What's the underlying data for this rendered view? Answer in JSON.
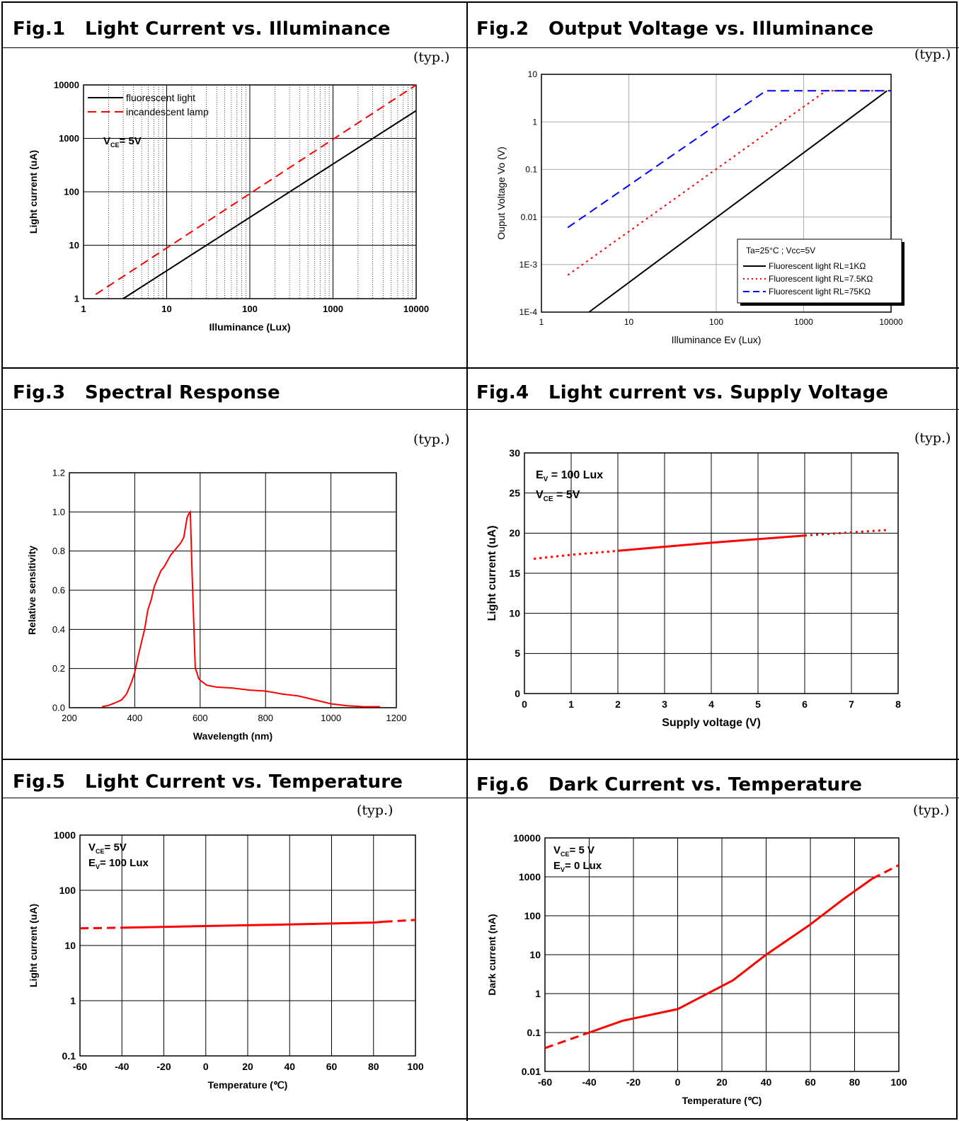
{
  "typ_label": "(typ.)",
  "charts": [
    {
      "title": "Fig.1   Light Current vs. Illuminance"
    },
    {
      "title": "Fig.2   Output Voltage vs. Illuminance"
    },
    {
      "title": "Fig.3   Spectral Response"
    },
    {
      "title": "Fig.4   Light current vs. Supply Voltage"
    },
    {
      "title": "Fig.5   Light Current vs. Temperature"
    },
    {
      "title": "Fig.6   Dark Current vs. Temperature"
    }
  ],
  "chart_data": [
    {
      "type": "line",
      "title": "Fig.1   Light Current vs. Illuminance",
      "xlabel": "Illuminance (Lux)",
      "ylabel": "Light current (uA)",
      "x_scale": "log",
      "y_scale": "log",
      "xlim": [
        1,
        10000
      ],
      "ylim": [
        1,
        10000
      ],
      "x_ticks": [
        "1",
        "10",
        "100",
        "1000",
        "10000"
      ],
      "y_ticks": [
        "1",
        "10",
        "100",
        "1000",
        "10000"
      ],
      "grid": true,
      "legend_position": "top-left",
      "annotation": {
        "main": "V",
        "sub": "CE",
        "rest": "= 5V"
      },
      "series": [
        {
          "name": "fluorescent light",
          "color": "#000000",
          "style": "solid",
          "x": [
            3,
            10000
          ],
          "y": [
            1,
            3300
          ]
        },
        {
          "name": "incandescent lamp",
          "color": "#ff0000",
          "style": "dashed",
          "x": [
            1.4,
            10000
          ],
          "y": [
            1.2,
            10000
          ]
        }
      ]
    },
    {
      "type": "line",
      "title": "Fig.2   Output Voltage vs. Illuminance",
      "xlabel": "Illuminance Ev (Lux)",
      "ylabel": "Ouput Voltage Vo (V)",
      "x_scale": "log",
      "y_scale": "log",
      "xlim": [
        1,
        10000
      ],
      "ylim": [
        0.0001,
        10
      ],
      "x_ticks": [
        "1",
        "10",
        "100",
        "1000",
        "10000"
      ],
      "y_ticks": [
        "1E-4",
        "1E-3",
        "0.01",
        "0.1",
        "1",
        "10"
      ],
      "grid": true,
      "legend_position": "bottom-right",
      "legend_title": "Ta=25°C ; Vcc=5V",
      "series": [
        {
          "name": "Fluorescent light  RL=1KΩ",
          "color": "#000000",
          "style": "solid",
          "x": [
            3.5,
            9000
          ],
          "y": [
            0.0001,
            4.5
          ]
        },
        {
          "name": "Fluorescent light  RL=7.5KΩ",
          "color": "#ff0000",
          "style": "dotted",
          "x": [
            2,
            1800,
            10000
          ],
          "y": [
            0.0006,
            4.5,
            4.5
          ]
        },
        {
          "name": "Fluorescent light  RL=75KΩ",
          "color": "#0000ff",
          "style": "dashed",
          "x": [
            2,
            370,
            10000
          ],
          "y": [
            0.006,
            4.5,
            4.5
          ]
        }
      ]
    },
    {
      "type": "line",
      "title": "Fig.3   Spectral Response",
      "xlabel": "Wavelength (nm)",
      "ylabel": "Relative sensitivity",
      "xlim": [
        200,
        1200
      ],
      "ylim": [
        0,
        1.2
      ],
      "x_ticks": [
        "200",
        "400",
        "600",
        "800",
        "1000",
        "1200"
      ],
      "y_ticks": [
        "0.0",
        "0.2",
        "0.4",
        "0.6",
        "0.8",
        "1.0",
        "1.2"
      ],
      "grid": true,
      "series": [
        {
          "name": "",
          "color": "#ff0000",
          "style": "solid",
          "x": [
            300,
            320,
            340,
            360,
            375,
            390,
            400,
            410,
            420,
            430,
            440,
            450,
            460,
            470,
            480,
            490,
            500,
            510,
            520,
            530,
            540,
            550,
            560,
            565,
            570,
            575,
            580,
            585,
            590,
            595,
            600,
            620,
            650,
            700,
            750,
            800,
            850,
            900,
            950,
            1000,
            1050,
            1100,
            1150
          ],
          "y": [
            0.005,
            0.012,
            0.025,
            0.04,
            0.07,
            0.13,
            0.18,
            0.26,
            0.33,
            0.4,
            0.5,
            0.55,
            0.62,
            0.66,
            0.7,
            0.72,
            0.75,
            0.78,
            0.8,
            0.82,
            0.84,
            0.87,
            0.97,
            0.99,
            1.0,
            0.7,
            0.45,
            0.2,
            0.18,
            0.15,
            0.14,
            0.115,
            0.105,
            0.1,
            0.09,
            0.085,
            0.07,
            0.06,
            0.04,
            0.02,
            0.01,
            0.005,
            0.005
          ]
        }
      ]
    },
    {
      "type": "line",
      "title": "Fig.4   Light current vs. Supply Voltage",
      "xlabel": "Supply voltage (V)",
      "ylabel": "Light current (uA)",
      "xlim": [
        0,
        8
      ],
      "ylim": [
        0,
        30
      ],
      "x_ticks": [
        "0",
        "1",
        "2",
        "3",
        "4",
        "5",
        "6",
        "7",
        "8"
      ],
      "y_ticks": [
        "0",
        "5",
        "10",
        "15",
        "20",
        "25",
        "30"
      ],
      "grid": true,
      "annotations": [
        {
          "main": "E",
          "sub": "V",
          "rest": " = 100 Lux"
        },
        {
          "main": "V",
          "sub": "CE",
          "rest": " = 5V"
        }
      ],
      "series": [
        {
          "name": "",
          "color": "#ff0000",
          "style": "dotted",
          "x": [
            0.2,
            1,
            2
          ],
          "y": [
            16.8,
            17.3,
            17.8
          ]
        },
        {
          "name": "",
          "color": "#ff0000",
          "style": "solid",
          "x": [
            2,
            4,
            6
          ],
          "y": [
            17.8,
            18.8,
            19.7
          ]
        },
        {
          "name": "",
          "color": "#ff0000",
          "style": "dotted",
          "x": [
            6,
            7,
            7.8
          ],
          "y": [
            19.7,
            20.1,
            20.4
          ]
        }
      ]
    },
    {
      "type": "line",
      "title": "Fig.5   Light Current vs. Temperature",
      "xlabel": "Temperature (℃)",
      "ylabel": "Light current (uA)",
      "y_scale": "log",
      "xlim": [
        -60,
        100
      ],
      "ylim": [
        0.1,
        1000
      ],
      "x_ticks": [
        "-60",
        "-40",
        "-20",
        "0",
        "20",
        "40",
        "60",
        "80",
        "100"
      ],
      "y_ticks": [
        "0.1",
        "1",
        "10",
        "100",
        "1000"
      ],
      "grid": true,
      "annotations": [
        {
          "main": "V",
          "sub": "CE",
          "rest": "= 5V"
        },
        {
          "main": "E",
          "sub": "V",
          "rest": "= 100 Lux"
        }
      ],
      "series": [
        {
          "name": "",
          "color": "#ff0000",
          "style": "dashed",
          "x": [
            -60,
            -40
          ],
          "y": [
            20.5,
            21
          ]
        },
        {
          "name": "",
          "color": "#ff0000",
          "style": "solid",
          "x": [
            -40,
            0,
            40,
            80,
            85
          ],
          "y": [
            21,
            22.5,
            24,
            26,
            27
          ]
        },
        {
          "name": "",
          "color": "#ff0000",
          "style": "dashed",
          "x": [
            85,
            100
          ],
          "y": [
            27,
            29
          ]
        }
      ]
    },
    {
      "type": "line",
      "title": "Fig.6   Dark Current vs. Temperature",
      "xlabel": "Temperature (℃)",
      "ylabel": "Dark current (nA)",
      "y_scale": "log",
      "xlim": [
        -60,
        100
      ],
      "ylim": [
        0.01,
        10000
      ],
      "x_ticks": [
        "-60",
        "-40",
        "-20",
        "0",
        "20",
        "40",
        "60",
        "80",
        "100"
      ],
      "y_ticks": [
        "0.01",
        "0.1",
        "1",
        "10",
        "100",
        "1000",
        "10000"
      ],
      "grid": true,
      "annotations": [
        {
          "main": "V",
          "sub": "CE",
          "rest": "= 5 V"
        },
        {
          "main": "E",
          "sub": "V",
          "rest": "= 0 Lux"
        }
      ],
      "series": [
        {
          "name": "",
          "color": "#ff0000",
          "style": "dashed",
          "x": [
            -60,
            -40
          ],
          "y": [
            0.04,
            0.1
          ]
        },
        {
          "name": "",
          "color": "#ff0000",
          "style": "solid",
          "x": [
            -40,
            -25,
            0,
            25,
            40,
            60,
            75,
            88
          ],
          "y": [
            0.1,
            0.2,
            0.4,
            2.2,
            10,
            60,
            270,
            900
          ]
        },
        {
          "name": "",
          "color": "#ff0000",
          "style": "dashed",
          "x": [
            88,
            100
          ],
          "y": [
            900,
            2000
          ]
        }
      ]
    }
  ]
}
